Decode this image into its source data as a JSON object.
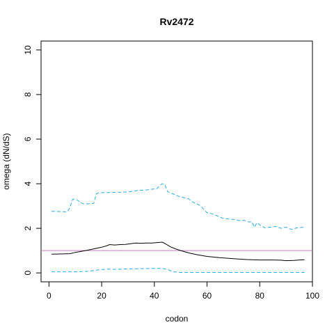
{
  "chart_data": {
    "type": "line",
    "title": "Rv2472",
    "xlabel": "codon",
    "ylabel": "omega (dN/dS)",
    "xlim": [
      -3,
      100
    ],
    "ylim": [
      -0.4,
      10.4
    ],
    "xticks": [
      "0",
      "20",
      "40",
      "60",
      "80",
      "100"
    ],
    "yticks": [
      "0",
      "2",
      "4",
      "6",
      "8",
      "10"
    ],
    "reference_line": {
      "y": 1,
      "color": "#c77cbf"
    },
    "colors": {
      "mean": "#000000",
      "bounds": "#29a9e1"
    },
    "grid": false,
    "legend": "none",
    "series": [
      {
        "style": "solid",
        "x": [
          1,
          4,
          8,
          10,
          13,
          16,
          18,
          20,
          22,
          23,
          25,
          27,
          29,
          31,
          33,
          35,
          37,
          39,
          41,
          43,
          44,
          46,
          48,
          50,
          53,
          56,
          60,
          65,
          70,
          75,
          80,
          85,
          88,
          90,
          93,
          95,
          97
        ],
        "y": [
          0.84,
          0.85,
          0.86,
          0.92,
          0.98,
          1.05,
          1.1,
          1.15,
          1.22,
          1.27,
          1.25,
          1.27,
          1.28,
          1.31,
          1.34,
          1.33,
          1.34,
          1.34,
          1.36,
          1.38,
          1.32,
          1.18,
          1.08,
          1.0,
          0.9,
          0.82,
          0.74,
          0.68,
          0.64,
          0.6,
          0.58,
          0.58,
          0.57,
          0.55,
          0.56,
          0.58,
          0.59
        ]
      },
      {
        "style": "dashed",
        "x": [
          1,
          3,
          5,
          7,
          8,
          9,
          10,
          11,
          12,
          13,
          15,
          17,
          18,
          19,
          22,
          25,
          28,
          31,
          34,
          37,
          39,
          41,
          42,
          43,
          44,
          45,
          47,
          49,
          51,
          53,
          55,
          57,
          58,
          60,
          62,
          64,
          66,
          68,
          70,
          72,
          74,
          76,
          77,
          78,
          79,
          80,
          82,
          84,
          86,
          88,
          90,
          92,
          94,
          97
        ],
        "y": [
          2.76,
          2.76,
          2.75,
          2.74,
          2.95,
          3.3,
          3.32,
          3.25,
          3.15,
          3.1,
          3.1,
          3.12,
          3.55,
          3.6,
          3.6,
          3.62,
          3.62,
          3.65,
          3.7,
          3.72,
          3.75,
          3.78,
          3.92,
          4.0,
          3.95,
          3.65,
          3.55,
          3.45,
          3.38,
          3.32,
          3.15,
          3.05,
          2.95,
          2.7,
          2.65,
          2.55,
          2.45,
          2.42,
          2.4,
          2.35,
          2.36,
          2.28,
          2.3,
          2.05,
          2.25,
          2.15,
          2.02,
          2.05,
          2.08,
          2.0,
          2.05,
          1.95,
          2.02,
          2.05
        ]
      },
      {
        "style": "dashed",
        "x": [
          1,
          5,
          10,
          15,
          18,
          20,
          22,
          25,
          30,
          35,
          40,
          43,
          45,
          47,
          50,
          55,
          60,
          70,
          80,
          90,
          97
        ],
        "y": [
          0.05,
          0.05,
          0.05,
          0.07,
          0.12,
          0.15,
          0.17,
          0.16,
          0.18,
          0.19,
          0.2,
          0.2,
          0.16,
          0.05,
          0.02,
          0.02,
          0.02,
          0.02,
          0.02,
          0.02,
          0.02
        ]
      }
    ]
  }
}
